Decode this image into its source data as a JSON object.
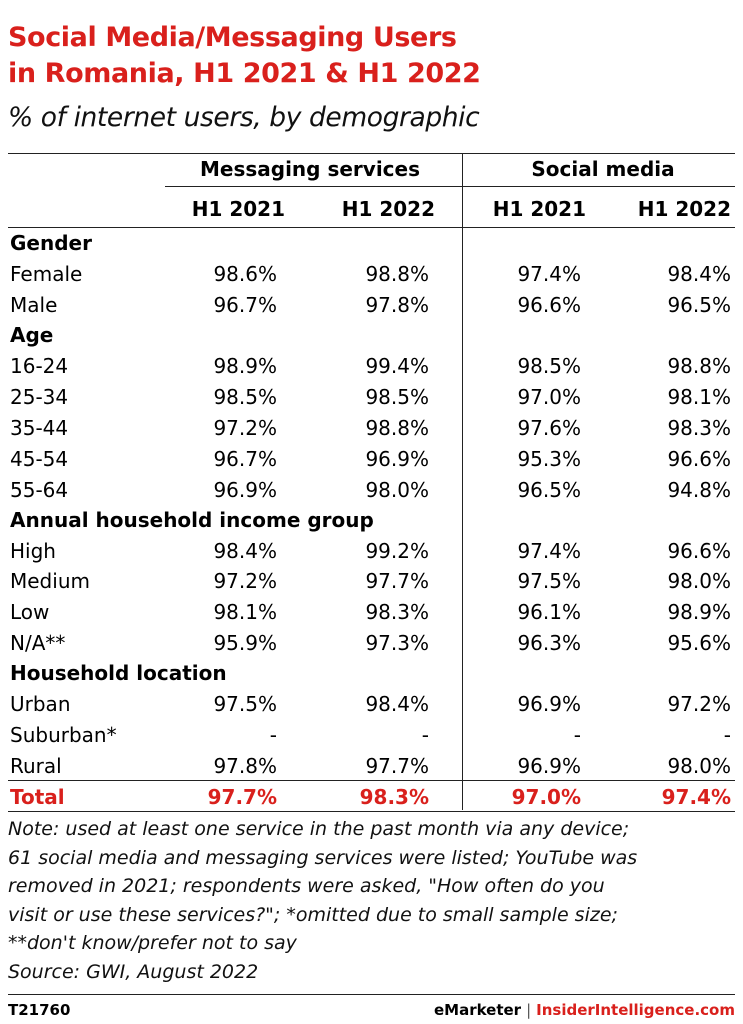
{
  "title_line1": "Social Media/Messaging Users",
  "title_line2": "in Romania, H1 2021 & H1 2022",
  "subtitle": "% of internet users, by demographic",
  "groups": {
    "messaging": "Messaging services",
    "social": "Social media"
  },
  "subheaders": [
    "H1 2021",
    "H1 2022",
    "H1 2021",
    "H1 2022"
  ],
  "rows": [
    {
      "type": "section",
      "label": "Gender"
    },
    {
      "type": "data",
      "label": "Female",
      "values": [
        "98.6%",
        "98.8%",
        "97.4%",
        "98.4%"
      ]
    },
    {
      "type": "data",
      "label": "Male",
      "values": [
        "96.7%",
        "97.8%",
        "96.6%",
        "96.5%"
      ]
    },
    {
      "type": "section",
      "label": "Age"
    },
    {
      "type": "data",
      "label": "16-24",
      "values": [
        "98.9%",
        "99.4%",
        "98.5%",
        "98.8%"
      ]
    },
    {
      "type": "data",
      "label": "25-34",
      "values": [
        "98.5%",
        "98.5%",
        "97.0%",
        "98.1%"
      ]
    },
    {
      "type": "data",
      "label": "35-44",
      "values": [
        "97.2%",
        "98.8%",
        "97.6%",
        "98.3%"
      ]
    },
    {
      "type": "data",
      "label": "45-54",
      "values": [
        "96.7%",
        "96.9%",
        "95.3%",
        "96.6%"
      ]
    },
    {
      "type": "data",
      "label": "55-64",
      "values": [
        "96.9%",
        "98.0%",
        "96.5%",
        "94.8%"
      ]
    },
    {
      "type": "section",
      "label": "Annual household income group"
    },
    {
      "type": "data",
      "label": "High",
      "values": [
        "98.4%",
        "99.2%",
        "97.4%",
        "96.6%"
      ]
    },
    {
      "type": "data",
      "label": "Medium",
      "values": [
        "97.2%",
        "97.7%",
        "97.5%",
        "98.0%"
      ]
    },
    {
      "type": "data",
      "label": "Low",
      "values": [
        "98.1%",
        "98.3%",
        "96.1%",
        "98.9%"
      ]
    },
    {
      "type": "data",
      "label": "N/A**",
      "values": [
        "95.9%",
        "97.3%",
        "96.3%",
        "95.6%"
      ]
    },
    {
      "type": "section",
      "label": "Household location"
    },
    {
      "type": "data",
      "label": "Urban",
      "values": [
        "97.5%",
        "98.4%",
        "96.9%",
        "97.2%"
      ]
    },
    {
      "type": "data",
      "label": "Suburban*",
      "values": [
        "-",
        "-",
        "-",
        "-"
      ]
    },
    {
      "type": "data",
      "label": "Rural",
      "values": [
        "97.8%",
        "97.7%",
        "96.9%",
        "98.0%"
      ]
    },
    {
      "type": "total",
      "label": "Total",
      "values": [
        "97.7%",
        "98.3%",
        "97.0%",
        "97.4%"
      ]
    }
  ],
  "note_lines": [
    "Note: used at least one service in the past month via any device;",
    "61 social media and messaging services were listed; YouTube was",
    "removed in 2021; respondents were asked, \"How often do you",
    "visit or use these services?\"; *omitted due to small sample size;",
    "**don't know/prefer not to say",
    "Source: GWI, August 2022"
  ],
  "footer": {
    "id": "T21760",
    "brand1": "eMarketer",
    "separator": "|",
    "brand2": "InsiderIntelligence.com"
  },
  "colors": {
    "accent": "#d9201c",
    "text": "#000000"
  },
  "chart_data": {
    "type": "table",
    "title": "Social Media/Messaging Users in Romania, H1 2021 & H1 2022",
    "subtitle": "% of internet users, by demographic",
    "columns": [
      "Messaging services H1 2021",
      "Messaging services H1 2022",
      "Social media H1 2021",
      "Social media H1 2022"
    ],
    "rows": [
      {
        "group": "Gender",
        "label": "Female",
        "values": [
          98.6,
          98.8,
          97.4,
          98.4
        ]
      },
      {
        "group": "Gender",
        "label": "Male",
        "values": [
          96.7,
          97.8,
          96.6,
          96.5
        ]
      },
      {
        "group": "Age",
        "label": "16-24",
        "values": [
          98.9,
          99.4,
          98.5,
          98.8
        ]
      },
      {
        "group": "Age",
        "label": "25-34",
        "values": [
          98.5,
          98.5,
          97.0,
          98.1
        ]
      },
      {
        "group": "Age",
        "label": "35-44",
        "values": [
          97.2,
          98.8,
          97.6,
          98.3
        ]
      },
      {
        "group": "Age",
        "label": "45-54",
        "values": [
          96.7,
          96.9,
          95.3,
          96.6
        ]
      },
      {
        "group": "Age",
        "label": "55-64",
        "values": [
          96.9,
          98.0,
          96.5,
          94.8
        ]
      },
      {
        "group": "Annual household income group",
        "label": "High",
        "values": [
          98.4,
          99.2,
          97.4,
          96.6
        ]
      },
      {
        "group": "Annual household income group",
        "label": "Medium",
        "values": [
          97.2,
          97.7,
          97.5,
          98.0
        ]
      },
      {
        "group": "Annual household income group",
        "label": "Low",
        "values": [
          98.1,
          98.3,
          96.1,
          98.9
        ]
      },
      {
        "group": "Annual household income group",
        "label": "N/A**",
        "values": [
          95.9,
          97.3,
          96.3,
          95.6
        ]
      },
      {
        "group": "Household location",
        "label": "Urban",
        "values": [
          97.5,
          98.4,
          96.9,
          97.2
        ]
      },
      {
        "group": "Household location",
        "label": "Suburban*",
        "values": [
          null,
          null,
          null,
          null
        ]
      },
      {
        "group": "Household location",
        "label": "Rural",
        "values": [
          97.8,
          97.7,
          96.9,
          98.0
        ]
      },
      {
        "group": "",
        "label": "Total",
        "values": [
          97.7,
          98.3,
          97.0,
          97.4
        ]
      }
    ]
  }
}
